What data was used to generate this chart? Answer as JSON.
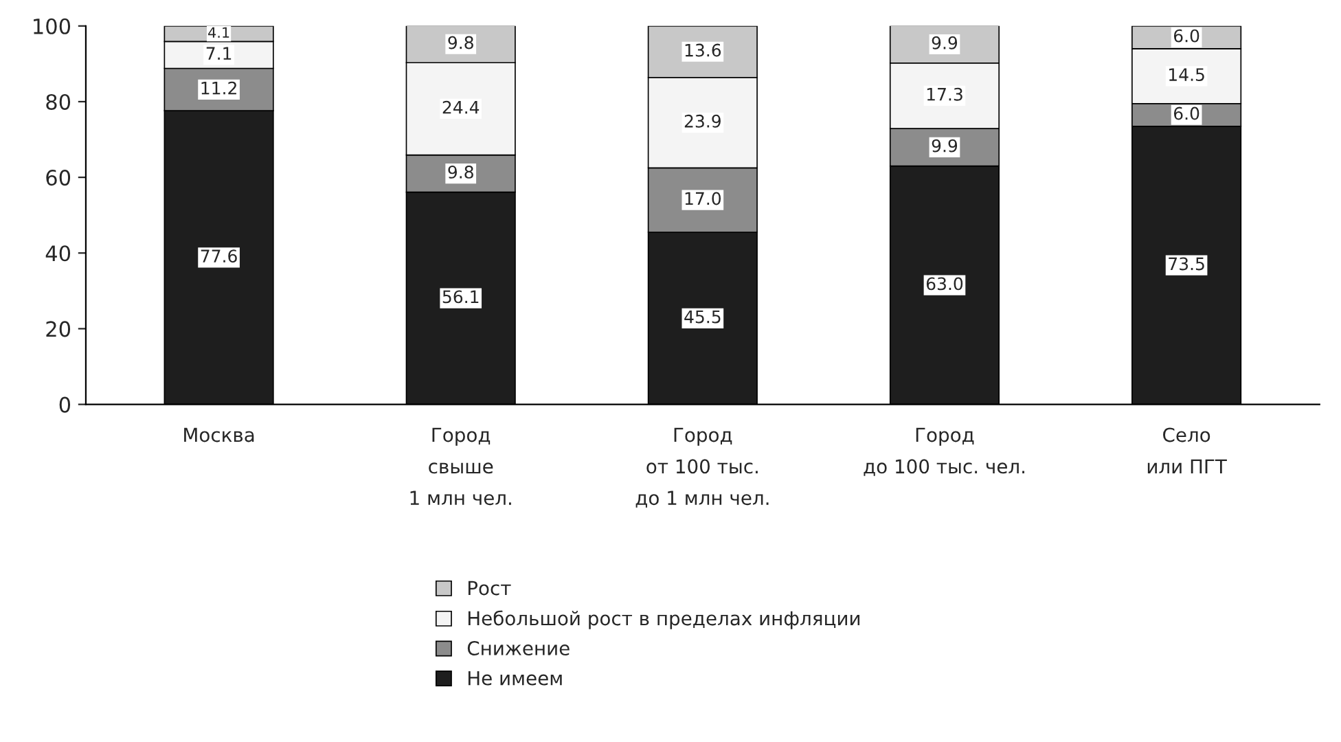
{
  "chart_data": {
    "type": "bar",
    "stacked": true,
    "categories": [
      "Москва",
      "Город\nсвыше\n1 млн чел.",
      "Город\nот 100 тыс.\nдо 1 млн чел.",
      "Город\nдо 100 тыс. чел.",
      "Село\nили ПГТ"
    ],
    "series": [
      {
        "name": "Не имеем",
        "color": "#1e1e1e",
        "values": [
          77.6,
          56.1,
          45.5,
          63.0,
          73.5
        ],
        "value_labels": [
          "77.6",
          "56.1",
          "45.5",
          "63.0",
          "73.5"
        ]
      },
      {
        "name": "Снижение",
        "color": "#8c8c8c",
        "values": [
          11.2,
          9.8,
          17.0,
          9.9,
          6.0
        ],
        "value_labels": [
          "11.2",
          "9.8",
          "17.0",
          "9.9",
          "6.0"
        ]
      },
      {
        "name": "Небольшой рост в пределах инфляции",
        "color": "#f4f4f4",
        "values": [
          7.1,
          24.4,
          23.9,
          17.3,
          14.5
        ],
        "value_labels": [
          "7.1",
          "24.4",
          "23.9",
          "17.3",
          "14.5"
        ]
      },
      {
        "name": "Рост",
        "color": "#c8c8c8",
        "values": [
          4.1,
          9.8,
          13.6,
          9.9,
          6.0
        ],
        "value_labels": [
          "4.1",
          "9.8",
          "13.6",
          "9.9",
          "6.0"
        ]
      }
    ],
    "ylim": [
      0,
      100
    ],
    "yticks": [
      0,
      20,
      40,
      60,
      80,
      100
    ],
    "legend": "bottom",
    "grid": false
  }
}
